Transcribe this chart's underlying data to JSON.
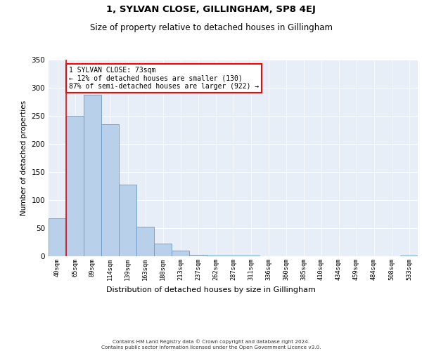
{
  "title": "1, SYLVAN CLOSE, GILLINGHAM, SP8 4EJ",
  "subtitle": "Size of property relative to detached houses in Gillingham",
  "xlabel": "Distribution of detached houses by size in Gillingham",
  "ylabel": "Number of detached properties",
  "bar_labels": [
    "40sqm",
    "65sqm",
    "89sqm",
    "114sqm",
    "139sqm",
    "163sqm",
    "188sqm",
    "213sqm",
    "237sqm",
    "262sqm",
    "287sqm",
    "311sqm",
    "336sqm",
    "360sqm",
    "385sqm",
    "410sqm",
    "434sqm",
    "459sqm",
    "484sqm",
    "508sqm",
    "533sqm"
  ],
  "bar_values": [
    68,
    250,
    287,
    235,
    127,
    52,
    23,
    10,
    3,
    1,
    1,
    1,
    0,
    0,
    0,
    0,
    0,
    0,
    0,
    0,
    1
  ],
  "bar_color": "#b8d0ea",
  "bar_edge_color": "#6699cc",
  "red_line_x": 1,
  "annotation_text": "1 SYLVAN CLOSE: 73sqm\n← 12% of detached houses are smaller (130)\n87% of semi-detached houses are larger (922) →",
  "ylim": [
    0,
    350
  ],
  "yticks": [
    0,
    50,
    100,
    150,
    200,
    250,
    300,
    350
  ],
  "background_color": "#e8eef8",
  "footer1": "Contains HM Land Registry data © Crown copyright and database right 2024.",
  "footer2": "Contains public sector information licensed under the Open Government Licence v3.0."
}
